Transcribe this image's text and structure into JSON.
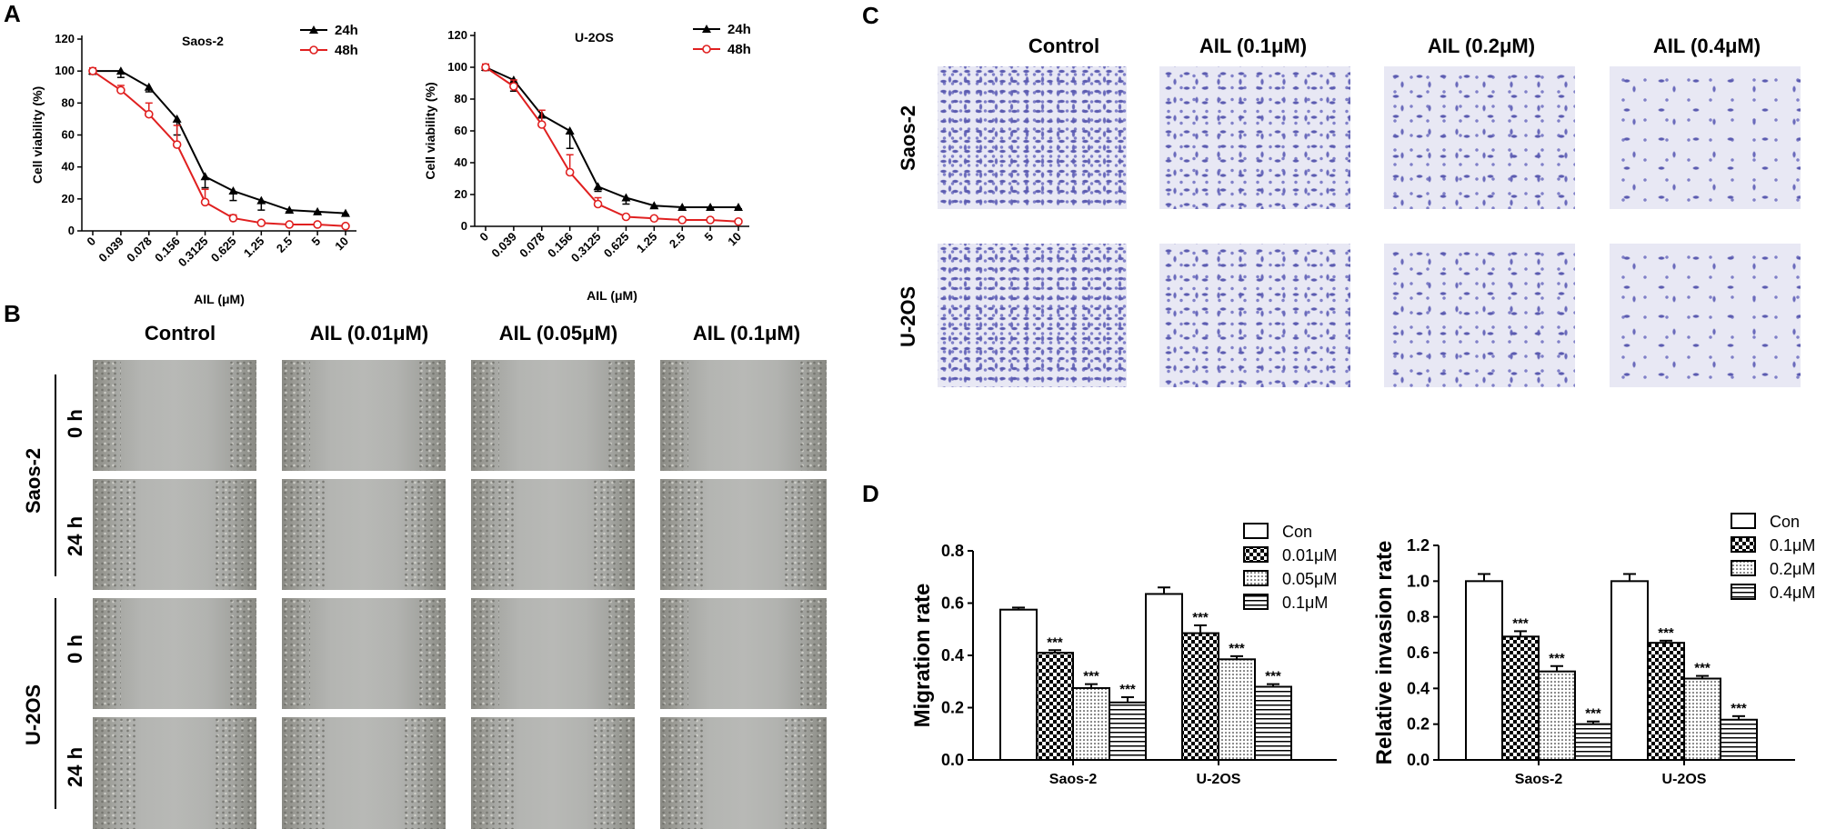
{
  "panels": {
    "A": "A",
    "B": "B",
    "C": "C",
    "D": "D"
  },
  "panelB": {
    "columns": [
      "Control",
      "AIL (0.01μM)",
      "AIL (0.05μM)",
      "AIL (0.1μM)"
    ],
    "cell_lines": [
      "Saos-2",
      "U-2OS"
    ],
    "times": [
      "0 h",
      "24 h"
    ]
  },
  "panelC": {
    "columns": [
      "Control",
      "AIL (0.1μM)",
      "AIL (0.2μM)",
      "AIL (0.4μM)"
    ],
    "rows": [
      "Saos-2",
      "U-2OS"
    ]
  },
  "colors": {
    "series24": "#000000",
    "series48": "#e02020"
  },
  "chart_data": [
    {
      "type": "line",
      "title": "Saos-2",
      "xlabel": "AIL (μM)",
      "ylabel": "Cell viability (%)",
      "x": [
        "0",
        "0.039",
        "0.078",
        "0.156",
        "0.3125",
        "0.625",
        "1.25",
        "2.5",
        "5",
        "10"
      ],
      "yticks": [
        0,
        20,
        40,
        60,
        80,
        100,
        120
      ],
      "ylim": [
        0,
        120
      ],
      "legend": "top-right",
      "series": [
        {
          "name": "24h",
          "marker": "triangle",
          "values": [
            100,
            100,
            90,
            70,
            34,
            25,
            19,
            13,
            12,
            11
          ],
          "errors": [
            2,
            4,
            3,
            10,
            7,
            6,
            6,
            1,
            1,
            1
          ]
        },
        {
          "name": "48h",
          "marker": "circle",
          "values": [
            100,
            88,
            73,
            54,
            18,
            8,
            5,
            4,
            4,
            3
          ],
          "errors": [
            2,
            3,
            7,
            12,
            8,
            2,
            1,
            1,
            1,
            1
          ]
        }
      ]
    },
    {
      "type": "line",
      "title": "U-2OS",
      "xlabel": "AIL (μM)",
      "ylabel": "Cell viability (%)",
      "x": [
        "0",
        "0.039",
        "0.078",
        "0.156",
        "0.3125",
        "0.625",
        "1.25",
        "2.5",
        "5",
        "10"
      ],
      "yticks": [
        0,
        20,
        40,
        60,
        80,
        100,
        120
      ],
      "ylim": [
        0,
        120
      ],
      "legend": "top-right",
      "series": [
        {
          "name": "24h",
          "marker": "triangle",
          "values": [
            100,
            92,
            70,
            60,
            25,
            18,
            13,
            12,
            12,
            12
          ],
          "errors": [
            2,
            7,
            5,
            11,
            3,
            4,
            1,
            1,
            1,
            1
          ]
        },
        {
          "name": "48h",
          "marker": "circle",
          "values": [
            100,
            88,
            64,
            34,
            14,
            6,
            5,
            4,
            4,
            3
          ],
          "errors": [
            2,
            4,
            9,
            11,
            4,
            1,
            1,
            1,
            1,
            1
          ]
        }
      ]
    },
    {
      "type": "bar",
      "ylabel": "Migration rate",
      "categories": [
        "Saos-2",
        "U-2OS"
      ],
      "yticks": [
        "0.0",
        "0.2",
        "0.4",
        "0.6",
        "0.8"
      ],
      "ylim": [
        0,
        0.8
      ],
      "legend": "top-right",
      "significance": "***",
      "series": [
        {
          "name": "Con",
          "pattern": "empty",
          "values": [
            0.575,
            0.635
          ],
          "errors": [
            0.008,
            0.025
          ],
          "sig": [
            false,
            false
          ]
        },
        {
          "name": "0.01μM",
          "pattern": "checker",
          "values": [
            0.41,
            0.485
          ],
          "errors": [
            0.01,
            0.03
          ],
          "sig": [
            true,
            true
          ]
        },
        {
          "name": "0.05μM",
          "pattern": "dots",
          "values": [
            0.275,
            0.385
          ],
          "errors": [
            0.015,
            0.012
          ],
          "sig": [
            true,
            true
          ]
        },
        {
          "name": "0.1μM",
          "pattern": "hlines",
          "values": [
            0.22,
            0.28
          ],
          "errors": [
            0.02,
            0.01
          ],
          "sig": [
            true,
            true
          ]
        }
      ]
    },
    {
      "type": "bar",
      "ylabel": "Relative invasion rate",
      "categories": [
        "Saos-2",
        "U-2OS"
      ],
      "yticks": [
        "0.0",
        "0.2",
        "0.4",
        "0.6",
        "0.8",
        "1.0",
        "1.2"
      ],
      "ylim": [
        0,
        1.2
      ],
      "legend": "top-right",
      "significance": "***",
      "series": [
        {
          "name": "Con",
          "pattern": "empty",
          "values": [
            1.0,
            1.0
          ],
          "errors": [
            0.04,
            0.04
          ],
          "sig": [
            false,
            false
          ]
        },
        {
          "name": "0.1μM",
          "pattern": "checker",
          "values": [
            0.69,
            0.655
          ],
          "errors": [
            0.03,
            0.012
          ],
          "sig": [
            true,
            true
          ]
        },
        {
          "name": "0.2μM",
          "pattern": "dots",
          "values": [
            0.495,
            0.455
          ],
          "errors": [
            0.03,
            0.015
          ],
          "sig": [
            true,
            true
          ]
        },
        {
          "name": "0.4μM",
          "pattern": "hlines",
          "values": [
            0.2,
            0.225
          ],
          "errors": [
            0.015,
            0.02
          ],
          "sig": [
            true,
            true
          ]
        }
      ]
    }
  ]
}
